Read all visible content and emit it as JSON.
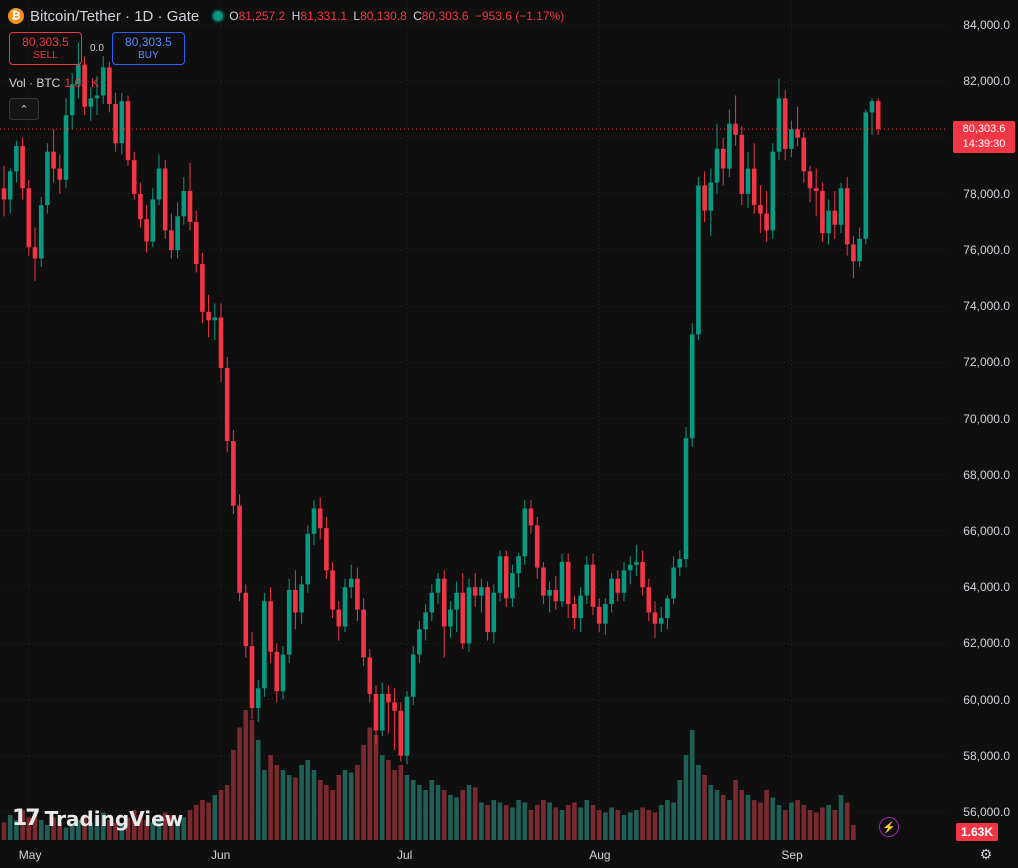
{
  "header": {
    "coin_icon": "bitcoin-icon",
    "coin_glyph": "₿",
    "symbol": "Bitcoin/Tether · 1D · Gate",
    "open_label": "O",
    "open": "81,257.2",
    "high_label": "H",
    "high": "81,331.1",
    "low_label": "L",
    "low": "80,130.8",
    "close_label": "C",
    "close": "80,303.6",
    "change": "−953.6 (−1.17%)"
  },
  "trade": {
    "sell_price": "80,303.5",
    "sell_label": "SELL",
    "spread": "0.0",
    "buy_price": "80,303.5",
    "buy_label": "BUY"
  },
  "volume": {
    "label": "Vol · BTC",
    "value": "1.63 K",
    "tag": "1.63K"
  },
  "collapse_glyph": "⌃",
  "price_tag": {
    "price": "80,303.6",
    "countdown": "14:39:30"
  },
  "logo": {
    "mark": "17",
    "text": "TradingView"
  },
  "bolt_glyph": "⚡",
  "gear_glyph": "⚙",
  "colors": {
    "up": "#089981",
    "down": "#f23645",
    "up_vol": "#1f5f55",
    "down_vol": "#7a2a2e",
    "grid": "#262626",
    "bg": "#0f0f0f"
  },
  "chart_data": {
    "type": "candlestick",
    "ylim": [
      55000,
      84900
    ],
    "y_ticks": [
      "84,000.0",
      "82,000.0",
      "80,000.0",
      "78,000.0",
      "76,000.0",
      "74,000.0",
      "72,000.0",
      "70,000.0",
      "68,000.0",
      "66,000.0",
      "64,000.0",
      "62,000.0",
      "60,000.0",
      "58,000.0",
      "56,000.0"
    ],
    "x_labels": [
      {
        "label": "May",
        "index": 4
      },
      {
        "label": "Jun",
        "index": 35
      },
      {
        "label": "Jul",
        "index": 65
      },
      {
        "label": "Aug",
        "index": 96
      },
      {
        "label": "Sep",
        "index": 127
      }
    ],
    "last_close": 80303.6,
    "ohlc": [
      [
        78200,
        79000,
        77200,
        77800
      ],
      [
        77800,
        78900,
        77300,
        78800
      ],
      [
        78800,
        79900,
        78400,
        79700
      ],
      [
        79700,
        80000,
        77800,
        78200
      ],
      [
        78200,
        78500,
        75800,
        76100
      ],
      [
        76100,
        76800,
        74900,
        75700
      ],
      [
        75700,
        77900,
        75400,
        77600
      ],
      [
        77600,
        79800,
        77300,
        79500
      ],
      [
        79500,
        80300,
        78400,
        78900
      ],
      [
        78900,
        79400,
        78000,
        78500
      ],
      [
        78500,
        81400,
        78200,
        80800
      ],
      [
        80800,
        82300,
        80300,
        81900
      ],
      [
        81900,
        83400,
        81400,
        82600
      ],
      [
        82600,
        82900,
        80800,
        81100
      ],
      [
        81100,
        81800,
        80600,
        81400
      ],
      [
        81400,
        82200,
        80800,
        81500
      ],
      [
        81500,
        82900,
        81200,
        82500
      ],
      [
        82500,
        82700,
        80900,
        81200
      ],
      [
        81200,
        81600,
        79500,
        79800
      ],
      [
        79800,
        81600,
        79400,
        81300
      ],
      [
        81300,
        81500,
        79000,
        79200
      ],
      [
        79200,
        79500,
        77800,
        78000
      ],
      [
        78000,
        78400,
        76800,
        77100
      ],
      [
        77100,
        77600,
        75900,
        76300
      ],
      [
        76300,
        78200,
        76100,
        77800
      ],
      [
        77800,
        79400,
        77600,
        78900
      ],
      [
        78900,
        79200,
        76400,
        76700
      ],
      [
        76700,
        77300,
        75700,
        76000
      ],
      [
        76000,
        77700,
        75700,
        77200
      ],
      [
        77200,
        78600,
        76900,
        78100
      ],
      [
        78100,
        79100,
        76700,
        77000
      ],
      [
        77000,
        77400,
        75200,
        75500
      ],
      [
        75500,
        75900,
        73400,
        73800
      ],
      [
        73800,
        74400,
        72900,
        73500
      ],
      [
        73500,
        74100,
        72800,
        73600
      ],
      [
        73600,
        74100,
        71300,
        71800
      ],
      [
        71800,
        72200,
        68800,
        69200
      ],
      [
        69200,
        69600,
        66600,
        66900
      ],
      [
        66900,
        67300,
        63500,
        63800
      ],
      [
        63800,
        64100,
        61500,
        61900
      ],
      [
        61900,
        62400,
        59300,
        59700
      ],
      [
        59700,
        60700,
        59200,
        60400
      ],
      [
        60400,
        63800,
        60100,
        63500
      ],
      [
        63500,
        64000,
        61300,
        61700
      ],
      [
        61700,
        62000,
        59900,
        60300
      ],
      [
        60300,
        61900,
        60000,
        61600
      ],
      [
        61600,
        64300,
        61300,
        63900
      ],
      [
        63900,
        64600,
        62500,
        63100
      ],
      [
        63100,
        64400,
        62700,
        64100
      ],
      [
        64100,
        66200,
        63800,
        65900
      ],
      [
        65900,
        67100,
        65500,
        66800
      ],
      [
        66800,
        67200,
        65700,
        66100
      ],
      [
        66100,
        66500,
        64300,
        64600
      ],
      [
        64600,
        64900,
        62900,
        63200
      ],
      [
        63200,
        63500,
        62100,
        62600
      ],
      [
        62600,
        64300,
        62400,
        64000
      ],
      [
        64000,
        64800,
        63600,
        64300
      ],
      [
        64300,
        64700,
        62800,
        63200
      ],
      [
        63200,
        63600,
        61200,
        61500
      ],
      [
        61500,
        61800,
        59900,
        60200
      ],
      [
        60200,
        60500,
        58400,
        58900
      ],
      [
        58900,
        60600,
        58700,
        60200
      ],
      [
        60200,
        60500,
        58800,
        59900
      ],
      [
        59900,
        60400,
        58200,
        59600
      ],
      [
        59600,
        59900,
        57800,
        58000
      ],
      [
        58000,
        60300,
        57700,
        60100
      ],
      [
        60100,
        61900,
        59800,
        61600
      ],
      [
        61600,
        62800,
        61300,
        62500
      ],
      [
        62500,
        63400,
        62100,
        63100
      ],
      [
        63100,
        64100,
        62800,
        63800
      ],
      [
        63800,
        64500,
        63400,
        64300
      ],
      [
        64300,
        64600,
        61500,
        62600
      ],
      [
        62600,
        63500,
        62200,
        63200
      ],
      [
        63200,
        64200,
        62400,
        63800
      ],
      [
        63800,
        64500,
        61800,
        62000
      ],
      [
        62000,
        64300,
        61700,
        64000
      ],
      [
        64000,
        64500,
        63300,
        63700
      ],
      [
        63700,
        64300,
        63100,
        64000
      ],
      [
        64000,
        64200,
        62100,
        62400
      ],
      [
        62400,
        64100,
        62000,
        63800
      ],
      [
        63800,
        65300,
        63500,
        65100
      ],
      [
        65100,
        65300,
        63300,
        63600
      ],
      [
        63600,
        64800,
        63300,
        64500
      ],
      [
        64500,
        65200,
        64000,
        65100
      ],
      [
        65100,
        67100,
        64800,
        66800
      ],
      [
        66800,
        67100,
        65900,
        66200
      ],
      [
        66200,
        66500,
        64300,
        64700
      ],
      [
        64700,
        64900,
        63400,
        63700
      ],
      [
        63700,
        64200,
        63100,
        63900
      ],
      [
        63900,
        64400,
        63200,
        63500
      ],
      [
        63500,
        65200,
        63300,
        64900
      ],
      [
        64900,
        65200,
        62900,
        63400
      ],
      [
        63400,
        63700,
        62500,
        62900
      ],
      [
        62900,
        64000,
        62400,
        63700
      ],
      [
        63700,
        65100,
        63400,
        64800
      ],
      [
        64800,
        65200,
        63000,
        63300
      ],
      [
        63300,
        63600,
        62400,
        62700
      ],
      [
        62700,
        63600,
        62300,
        63400
      ],
      [
        63400,
        64500,
        63100,
        64300
      ],
      [
        64300,
        64600,
        63500,
        63800
      ],
      [
        63800,
        64900,
        63500,
        64600
      ],
      [
        64600,
        65100,
        64100,
        64800
      ],
      [
        64800,
        65500,
        64400,
        64900
      ],
      [
        64900,
        65300,
        63700,
        64000
      ],
      [
        64000,
        64300,
        62800,
        63100
      ],
      [
        63100,
        63500,
        62200,
        62700
      ],
      [
        62700,
        63300,
        62400,
        62900
      ],
      [
        62900,
        63700,
        62500,
        63600
      ],
      [
        63600,
        65100,
        63400,
        64700
      ],
      [
        64700,
        65300,
        64400,
        65000
      ],
      [
        65000,
        69700,
        64700,
        69300
      ],
      [
        69300,
        73400,
        69000,
        73000
      ],
      [
        73000,
        78600,
        72800,
        78300
      ],
      [
        78300,
        78800,
        77000,
        77400
      ],
      [
        77400,
        78900,
        76500,
        78400
      ],
      [
        78400,
        80500,
        78000,
        79600
      ],
      [
        79600,
        80000,
        78300,
        78900
      ],
      [
        78900,
        81000,
        78600,
        80500
      ],
      [
        80500,
        81500,
        79700,
        80100
      ],
      [
        80100,
        80400,
        77600,
        78000
      ],
      [
        78000,
        79500,
        77500,
        78900
      ],
      [
        78900,
        79800,
        77300,
        77600
      ],
      [
        77600,
        78300,
        76600,
        77300
      ],
      [
        77300,
        78100,
        76300,
        76700
      ],
      [
        76700,
        79800,
        76400,
        79500
      ],
      [
        79500,
        82100,
        79200,
        81400
      ],
      [
        81400,
        81700,
        79200,
        79600
      ],
      [
        79600,
        80600,
        79300,
        80300
      ],
      [
        80300,
        81100,
        79700,
        80000
      ],
      [
        80000,
        80200,
        78400,
        78800
      ],
      [
        78800,
        79000,
        77700,
        78200
      ],
      [
        78200,
        78900,
        77200,
        78100
      ],
      [
        78100,
        78400,
        76300,
        76600
      ],
      [
        76600,
        77800,
        76200,
        77400
      ],
      [
        77400,
        78100,
        76400,
        76900
      ],
      [
        76900,
        78400,
        76600,
        78200
      ],
      [
        78200,
        78600,
        75800,
        76200
      ],
      [
        76200,
        76500,
        75000,
        75600
      ],
      [
        75600,
        76800,
        75400,
        76400
      ],
      [
        76400,
        81000,
        76200,
        80900
      ],
      [
        80900,
        81400,
        80100,
        81300
      ],
      [
        81300,
        81400,
        80100,
        80300
      ]
    ],
    "volume": [
      7,
      10,
      8,
      12,
      9,
      11,
      8,
      6,
      9,
      7,
      5,
      6,
      8,
      10,
      7,
      9,
      11,
      8,
      7,
      6,
      9,
      12,
      10,
      8,
      7,
      9,
      11,
      10,
      8,
      9,
      12,
      14,
      16,
      15,
      18,
      20,
      22,
      36,
      45,
      52,
      48,
      40,
      28,
      34,
      30,
      28,
      26,
      25,
      30,
      32,
      28,
      24,
      22,
      20,
      26,
      28,
      27,
      30,
      38,
      45,
      42,
      34,
      32,
      28,
      30,
      26,
      24,
      22,
      20,
      24,
      22,
      20,
      18,
      17,
      20,
      22,
      21,
      15,
      14,
      16,
      15,
      14,
      13,
      16,
      15,
      12,
      14,
      16,
      15,
      13,
      12,
      14,
      15,
      13,
      16,
      14,
      12,
      11,
      13,
      12,
      10,
      11,
      12,
      13,
      12,
      11,
      14,
      16,
      15,
      24,
      34,
      44,
      30,
      26,
      22,
      20,
      18,
      16,
      24,
      20,
      18,
      16,
      15,
      20,
      17,
      14,
      12,
      15,
      16,
      14,
      12,
      11,
      13,
      14,
      12,
      18,
      15,
      6
    ]
  }
}
